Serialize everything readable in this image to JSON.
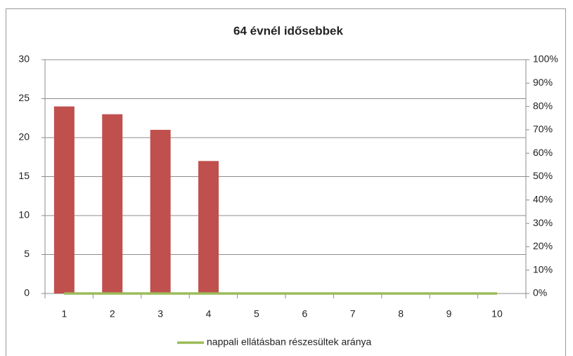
{
  "chart_data": {
    "type": "bar",
    "title": "64 évnél idősebbek",
    "categories": [
      "1",
      "2",
      "3",
      "4",
      "5",
      "6",
      "7",
      "8",
      "9",
      "10"
    ],
    "series": [
      {
        "type": "bar",
        "color": "#c0504d",
        "values": [
          24,
          23,
          21,
          17,
          0,
          0,
          0,
          0,
          0,
          0
        ]
      },
      {
        "type": "line",
        "name": "nappali ellátásban részesültek aránya",
        "color": "#9bbb59",
        "axis": "y2",
        "values": [
          0,
          0,
          0,
          0,
          0,
          0,
          0,
          0,
          0,
          0
        ]
      }
    ],
    "ylim": [
      0,
      30
    ],
    "yticks": [
      0,
      5,
      10,
      15,
      20,
      25,
      30
    ],
    "y2lim": [
      0,
      100
    ],
    "y2ticks": [
      {
        "value": 0,
        "label": "0%"
      },
      {
        "value": 10,
        "label": "10%"
      },
      {
        "value": 20,
        "label": "20%"
      },
      {
        "value": 30,
        "label": "30%"
      },
      {
        "value": 40,
        "label": "40%"
      },
      {
        "value": 50,
        "label": "50%"
      },
      {
        "value": 60,
        "label": "60%"
      },
      {
        "value": 70,
        "label": "70%"
      },
      {
        "value": 80,
        "label": "80%"
      },
      {
        "value": 90,
        "label": "90%"
      },
      {
        "value": 100,
        "label": "100%"
      }
    ],
    "grid": true,
    "legend": "bottom"
  }
}
